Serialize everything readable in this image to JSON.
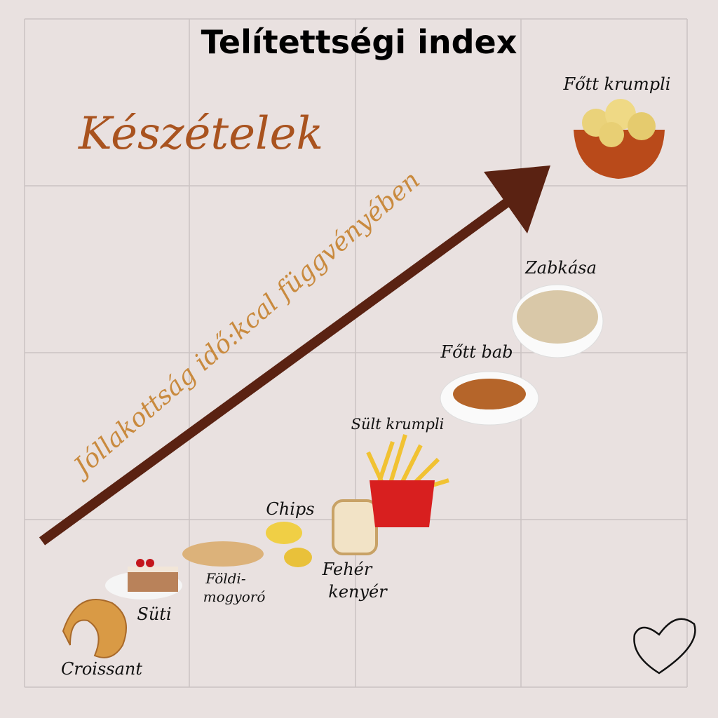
{
  "header": {
    "title": "Telítettségi index",
    "subtitle": "Készételek"
  },
  "arrow": {
    "label": "Jóllakottság idő:kcal függvényében"
  },
  "items": [
    {
      "label": [
        "Croissant"
      ]
    },
    {
      "label": [
        "Süti"
      ]
    },
    {
      "label": [
        "Földi-",
        "mogyoró"
      ]
    },
    {
      "label": [
        "Chips"
      ]
    },
    {
      "label": [
        "Fehér",
        "kenyér"
      ]
    },
    {
      "label": [
        "Sült krumpli"
      ]
    },
    {
      "label": [
        "Főtt bab"
      ]
    },
    {
      "label": [
        "Zabkása"
      ]
    },
    {
      "label": [
        "Főtt krumpli"
      ]
    }
  ]
}
